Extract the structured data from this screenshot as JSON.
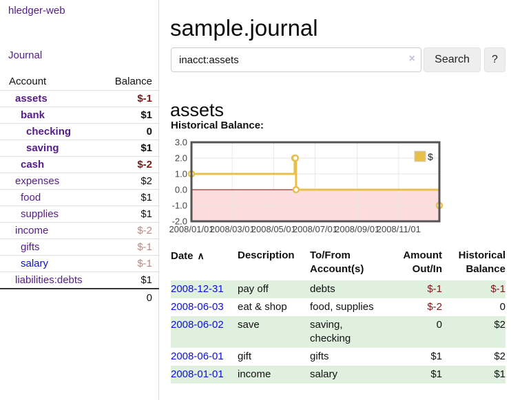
{
  "app": {
    "brand": "hledger-web"
  },
  "sidebar": {
    "journal_link": "Journal",
    "table": {
      "account_header": "Account",
      "balance_header": "Balance"
    },
    "accounts": [
      {
        "name": "assets",
        "level": 0,
        "bold": true,
        "link_style": "visited",
        "balance": "$-1",
        "balance_style": "neg-strong"
      },
      {
        "name": "bank",
        "level": 1,
        "bold": true,
        "link_style": "visited",
        "balance": "$1",
        "balance_style": "pos"
      },
      {
        "name": "checking",
        "level": 2,
        "bold": true,
        "link_style": "visited",
        "balance": "0",
        "balance_style": "pos"
      },
      {
        "name": "saving",
        "level": 2,
        "bold": true,
        "link_style": "visited",
        "balance": "$1",
        "balance_style": "pos"
      },
      {
        "name": "cash",
        "level": 1,
        "bold": true,
        "link_style": "visited",
        "balance": "$-2",
        "balance_style": "neg-strong"
      },
      {
        "name": "expenses",
        "level": 0,
        "bold": false,
        "link_style": "visited",
        "balance": "$2",
        "balance_style": "pos"
      },
      {
        "name": "food",
        "level": 1,
        "bold": false,
        "link_style": "visited",
        "balance": "$1",
        "balance_style": "pos"
      },
      {
        "name": "supplies",
        "level": 1,
        "bold": false,
        "link_style": "visited",
        "balance": "$1",
        "balance_style": "pos"
      },
      {
        "name": "income",
        "level": 0,
        "bold": false,
        "link_style": "visited",
        "balance": "$-2",
        "balance_style": "neg-muted"
      },
      {
        "name": "gifts",
        "level": 1,
        "bold": false,
        "link_style": "visited",
        "balance": "$-1",
        "balance_style": "neg-muted"
      },
      {
        "name": "salary",
        "level": 1,
        "bold": false,
        "link_style": "new",
        "balance": "$-1",
        "balance_style": "neg-muted"
      },
      {
        "name": "liabilities:debts",
        "level": 0,
        "bold": false,
        "link_style": "visited",
        "balance": "$1",
        "balance_style": "pos"
      }
    ],
    "total": "0"
  },
  "header": {
    "title": "sample.journal"
  },
  "search": {
    "query": "inacct:assets",
    "clear_icon": "×",
    "button": "Search",
    "help_button": "?"
  },
  "account_page": {
    "heading": "assets",
    "chart_label": "Historical Balance:"
  },
  "chart_data": {
    "type": "line",
    "step": true,
    "title": "Historical Balance",
    "series": [
      {
        "name": "$",
        "x": [
          "2008-01-01",
          "2008-06-01",
          "2008-06-02",
          "2008-06-03",
          "2008-12-31"
        ],
        "values": [
          1,
          2,
          2,
          0,
          -1
        ]
      }
    ],
    "x_range": [
      "2008-01-01",
      "2008-12-31"
    ],
    "ylim": [
      -2,
      3
    ],
    "grid": true,
    "y_ticks": [
      "3.0",
      "2.0",
      "1.0",
      "0.0",
      "-1.0",
      "-2.0"
    ],
    "x_ticks": [
      {
        "date": "2008-01-01",
        "label": "2008/01/01"
      },
      {
        "date": "2008-03-01",
        "label": "2008/03/01"
      },
      {
        "date": "2008-05-01",
        "label": "2008/05/01"
      },
      {
        "date": "2008-07-01",
        "label": "2008/07/01"
      },
      {
        "date": "2008-09-01",
        "label": "2008/09/01"
      },
      {
        "date": "2008-11-01",
        "label": "2008/11/01"
      }
    ],
    "legend": {
      "label": "$",
      "position": "top-right"
    },
    "colors": {
      "line": "#e6c04a",
      "marker_fill": "#ffffff",
      "negative_region": "#fcdcdc",
      "zero_line": "#8b0000",
      "border": "#545454",
      "grid": "#e6e6e6",
      "tick_text": "#444444"
    }
  },
  "register": {
    "headers": {
      "date": "Date",
      "sort_icon": "∧",
      "description": "Description",
      "accounts": "To/From Account(s)",
      "amount": "Amount Out/In",
      "balance": "Historical Balance"
    },
    "rows": [
      {
        "date": "2008-12-31",
        "description": "pay off",
        "accounts": "debts",
        "amount": "$-1",
        "amount_neg": true,
        "balance": "$-1",
        "balance_neg": true
      },
      {
        "date": "2008-06-03",
        "description": "eat & shop",
        "accounts": "food, supplies",
        "amount": "$-2",
        "amount_neg": true,
        "balance": "0",
        "balance_neg": false
      },
      {
        "date": "2008-06-02",
        "description": "save",
        "accounts": "saving, checking",
        "amount": "0",
        "amount_neg": false,
        "balance": "$2",
        "balance_neg": false
      },
      {
        "date": "2008-06-01",
        "description": "gift",
        "accounts": "gifts",
        "amount": "$1",
        "amount_neg": false,
        "balance": "$2",
        "balance_neg": false
      },
      {
        "date": "2008-01-01",
        "description": "income",
        "accounts": "salary",
        "amount": "$1",
        "amount_neg": false,
        "balance": "$1",
        "balance_neg": false
      }
    ]
  }
}
